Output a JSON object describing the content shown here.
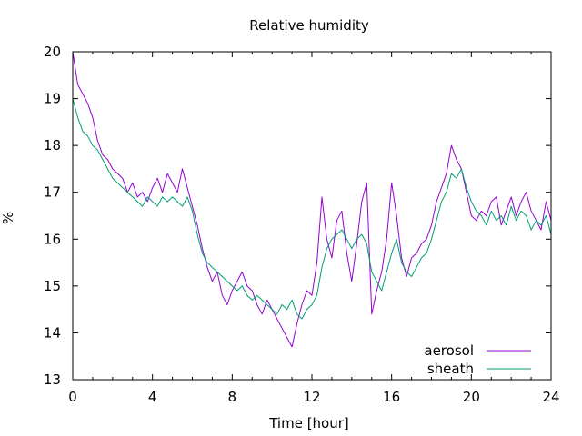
{
  "chart_data": {
    "type": "line",
    "title": "Relative humidity",
    "xlabel": "Time [hour]",
    "ylabel": "%",
    "xlim": [
      0,
      24
    ],
    "ylim": [
      13,
      20
    ],
    "xticks": [
      0,
      4,
      8,
      12,
      16,
      20,
      24
    ],
    "yticks": [
      13,
      14,
      15,
      16,
      17,
      18,
      19,
      20
    ],
    "grid": false,
    "legend_position": "bottom-right",
    "series": [
      {
        "name": "aerosol",
        "color": "#9400d3",
        "x": [
          0,
          0.25,
          0.5,
          0.75,
          1,
          1.25,
          1.5,
          1.75,
          2,
          2.25,
          2.5,
          2.75,
          3,
          3.25,
          3.5,
          3.75,
          4,
          4.25,
          4.5,
          4.75,
          5,
          5.25,
          5.5,
          5.75,
          6,
          6.25,
          6.5,
          6.75,
          7,
          7.25,
          7.5,
          7.75,
          8,
          8.25,
          8.5,
          8.75,
          9,
          9.25,
          9.5,
          9.75,
          10,
          10.25,
          10.5,
          10.75,
          11,
          11.25,
          11.5,
          11.75,
          12,
          12.25,
          12.5,
          12.75,
          13,
          13.25,
          13.5,
          13.75,
          14,
          14.25,
          14.5,
          14.75,
          15,
          15.25,
          15.5,
          15.75,
          16,
          16.25,
          16.5,
          16.75,
          17,
          17.25,
          17.5,
          17.75,
          18,
          18.25,
          18.5,
          18.75,
          19,
          19.25,
          19.5,
          19.75,
          20,
          20.25,
          20.5,
          20.75,
          21,
          21.25,
          21.5,
          21.75,
          22,
          22.25,
          22.5,
          22.75,
          23,
          23.25,
          23.5,
          23.75,
          24
        ],
        "values": [
          20.0,
          19.3,
          19.1,
          18.9,
          18.6,
          18.1,
          17.8,
          17.7,
          17.5,
          17.4,
          17.3,
          17.0,
          17.2,
          16.9,
          17.0,
          16.8,
          17.1,
          17.3,
          17.0,
          17.4,
          17.2,
          17.0,
          17.5,
          17.1,
          16.7,
          16.3,
          15.8,
          15.4,
          15.1,
          15.3,
          14.8,
          14.6,
          14.9,
          15.1,
          15.3,
          15.0,
          14.9,
          14.6,
          14.4,
          14.7,
          14.5,
          14.3,
          14.1,
          13.9,
          13.7,
          14.2,
          14.6,
          14.9,
          14.8,
          15.5,
          16.9,
          16.0,
          15.6,
          16.4,
          16.6,
          15.7,
          15.1,
          15.9,
          16.8,
          17.2,
          14.4,
          14.9,
          15.3,
          16.0,
          17.2,
          16.5,
          15.6,
          15.2,
          15.6,
          15.7,
          15.9,
          16.0,
          16.3,
          16.8,
          17.1,
          17.4,
          18.0,
          17.7,
          17.5,
          17.0,
          16.5,
          16.4,
          16.6,
          16.5,
          16.8,
          16.9,
          16.3,
          16.6,
          16.9,
          16.5,
          16.8,
          17.0,
          16.6,
          16.4,
          16.2,
          16.8,
          16.4
        ],
        "legend_label": "aerosol"
      },
      {
        "name": "sheath",
        "color": "#009e73",
        "x": [
          0,
          0.25,
          0.5,
          0.75,
          1,
          1.25,
          1.5,
          1.75,
          2,
          2.25,
          2.5,
          2.75,
          3,
          3.25,
          3.5,
          3.75,
          4,
          4.25,
          4.5,
          4.75,
          5,
          5.25,
          5.5,
          5.75,
          6,
          6.25,
          6.5,
          6.75,
          7,
          7.25,
          7.5,
          7.75,
          8,
          8.25,
          8.5,
          8.75,
          9,
          9.25,
          9.5,
          9.75,
          10,
          10.25,
          10.5,
          10.75,
          11,
          11.25,
          11.5,
          11.75,
          12,
          12.25,
          12.5,
          12.75,
          13,
          13.25,
          13.5,
          13.75,
          14,
          14.25,
          14.5,
          14.75,
          15,
          15.25,
          15.5,
          15.75,
          16,
          16.25,
          16.5,
          16.75,
          17,
          17.25,
          17.5,
          17.75,
          18,
          18.25,
          18.5,
          18.75,
          19,
          19.25,
          19.5,
          19.75,
          20,
          20.25,
          20.5,
          20.75,
          21,
          21.25,
          21.5,
          21.75,
          22,
          22.25,
          22.5,
          22.75,
          23,
          23.25,
          23.5,
          23.75,
          24
        ],
        "values": [
          19.0,
          18.6,
          18.3,
          18.2,
          18.0,
          17.9,
          17.7,
          17.5,
          17.3,
          17.2,
          17.1,
          17.0,
          16.9,
          16.8,
          16.7,
          16.9,
          16.8,
          16.7,
          16.9,
          16.8,
          16.9,
          16.8,
          16.7,
          16.9,
          16.6,
          16.1,
          15.7,
          15.5,
          15.4,
          15.3,
          15.2,
          15.1,
          15.0,
          14.9,
          15.0,
          14.8,
          14.7,
          14.8,
          14.7,
          14.6,
          14.5,
          14.4,
          14.6,
          14.5,
          14.7,
          14.4,
          14.3,
          14.5,
          14.6,
          14.8,
          15.4,
          15.8,
          16.0,
          16.1,
          16.2,
          16.0,
          15.8,
          16.0,
          16.1,
          15.9,
          15.3,
          15.1,
          14.9,
          15.3,
          15.7,
          16.0,
          15.5,
          15.3,
          15.2,
          15.4,
          15.6,
          15.7,
          16.0,
          16.4,
          16.8,
          17.0,
          17.4,
          17.3,
          17.5,
          17.1,
          16.8,
          16.6,
          16.5,
          16.3,
          16.6,
          16.4,
          16.5,
          16.3,
          16.7,
          16.4,
          16.6,
          16.5,
          16.2,
          16.4,
          16.3,
          16.5,
          16.1
        ],
        "legend_label": "sheath"
      }
    ]
  }
}
